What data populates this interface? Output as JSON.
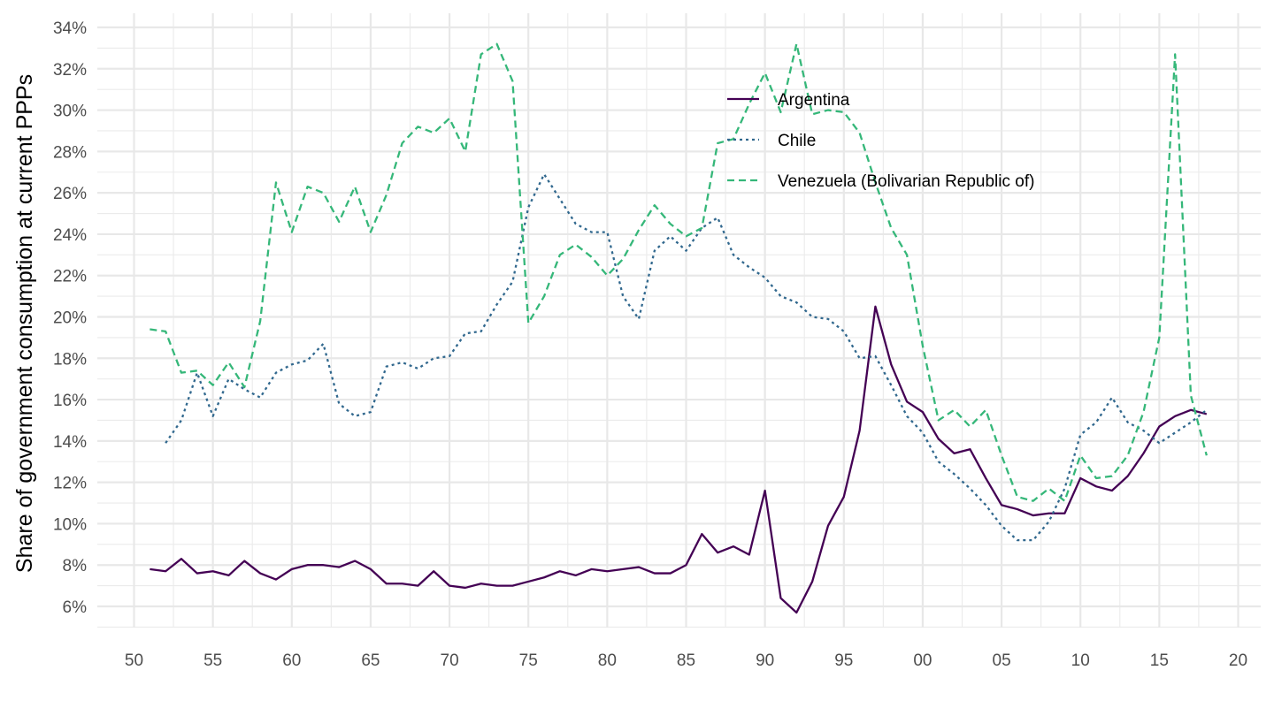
{
  "chart_data": {
    "type": "line",
    "title": "",
    "xlabel": "",
    "ylabel": "Share of government consumption at current PPPs",
    "xlim": [
      1948,
      2021
    ],
    "ylim": [
      0.05,
      0.345
    ],
    "x_ticks": [
      {
        "value": 1950,
        "label": "50"
      },
      {
        "value": 1955,
        "label": "55"
      },
      {
        "value": 1960,
        "label": "60"
      },
      {
        "value": 1965,
        "label": "65"
      },
      {
        "value": 1970,
        "label": "70"
      },
      {
        "value": 1975,
        "label": "75"
      },
      {
        "value": 1980,
        "label": "80"
      },
      {
        "value": 1985,
        "label": "85"
      },
      {
        "value": 1990,
        "label": "90"
      },
      {
        "value": 1995,
        "label": "95"
      },
      {
        "value": 2000,
        "label": "00"
      },
      {
        "value": 2005,
        "label": "05"
      },
      {
        "value": 2010,
        "label": "10"
      },
      {
        "value": 2015,
        "label": "15"
      },
      {
        "value": 2020,
        "label": "20"
      }
    ],
    "y_ticks": [
      {
        "value": 0.06,
        "label": "6%"
      },
      {
        "value": 0.08,
        "label": "8%"
      },
      {
        "value": 0.1,
        "label": "10%"
      },
      {
        "value": 0.12,
        "label": "12%"
      },
      {
        "value": 0.14,
        "label": "14%"
      },
      {
        "value": 0.16,
        "label": "16%"
      },
      {
        "value": 0.18,
        "label": "18%"
      },
      {
        "value": 0.2,
        "label": "20%"
      },
      {
        "value": 0.22,
        "label": "22%"
      },
      {
        "value": 0.24,
        "label": "24%"
      },
      {
        "value": 0.26,
        "label": "26%"
      },
      {
        "value": 0.28,
        "label": "28%"
      },
      {
        "value": 0.3,
        "label": "30%"
      },
      {
        "value": 0.32,
        "label": "32%"
      },
      {
        "value": 0.34,
        "label": "34%"
      }
    ],
    "grid": true,
    "legend": {
      "position": "top-right, inside plot"
    },
    "series": [
      {
        "name": "Argentina",
        "color": "#440154",
        "dash": "solid",
        "x": [
          1951,
          1952,
          1953,
          1954,
          1955,
          1956,
          1957,
          1958,
          1959,
          1960,
          1961,
          1962,
          1963,
          1964,
          1965,
          1966,
          1967,
          1968,
          1969,
          1970,
          1971,
          1972,
          1973,
          1974,
          1975,
          1976,
          1977,
          1978,
          1979,
          1980,
          1981,
          1982,
          1983,
          1984,
          1985,
          1986,
          1987,
          1988,
          1989,
          1990,
          1991,
          1992,
          1993,
          1994,
          1995,
          1996,
          1997,
          1998,
          1999,
          2000,
          2001,
          2002,
          2003,
          2004,
          2005,
          2006,
          2007,
          2008,
          2009,
          2010,
          2011,
          2012,
          2013,
          2014,
          2015,
          2016,
          2017,
          2018
        ],
        "y": [
          0.078,
          0.077,
          0.083,
          0.076,
          0.077,
          0.075,
          0.082,
          0.076,
          0.073,
          0.078,
          0.08,
          0.08,
          0.079,
          0.082,
          0.078,
          0.071,
          0.071,
          0.07,
          0.077,
          0.07,
          0.069,
          0.071,
          0.07,
          0.07,
          0.072,
          0.074,
          0.077,
          0.075,
          0.078,
          0.077,
          0.078,
          0.079,
          0.076,
          0.076,
          0.08,
          0.095,
          0.086,
          0.089,
          0.085,
          0.116,
          0.064,
          0.057,
          0.072,
          0.099,
          0.113,
          0.145,
          0.205,
          0.177,
          0.159,
          0.154,
          0.141,
          0.134,
          0.136,
          0.122,
          0.109,
          0.107,
          0.104,
          0.105,
          0.105,
          0.122,
          0.118,
          0.116,
          0.123,
          0.134,
          0.147,
          0.152,
          0.155,
          0.153
        ]
      },
      {
        "name": "Chile",
        "color": "#31688E",
        "dash": "dotted",
        "x": [
          1952,
          1953,
          1954,
          1955,
          1956,
          1957,
          1958,
          1959,
          1960,
          1961,
          1962,
          1963,
          1964,
          1965,
          1966,
          1967,
          1968,
          1969,
          1970,
          1971,
          1972,
          1973,
          1974,
          1975,
          1976,
          1977,
          1978,
          1979,
          1980,
          1981,
          1982,
          1983,
          1984,
          1985,
          1986,
          1987,
          1988,
          1989,
          1990,
          1991,
          1992,
          1993,
          1994,
          1995,
          1996,
          1997,
          1998,
          1999,
          2000,
          2001,
          2002,
          2003,
          2004,
          2005,
          2006,
          2007,
          2008,
          2009,
          2010,
          2011,
          2012,
          2013,
          2014,
          2015,
          2016,
          2017,
          2018
        ],
        "y": [
          0.139,
          0.15,
          0.173,
          0.152,
          0.17,
          0.165,
          0.161,
          0.173,
          0.177,
          0.179,
          0.187,
          0.158,
          0.152,
          0.154,
          0.176,
          0.178,
          0.175,
          0.18,
          0.181,
          0.192,
          0.193,
          0.206,
          0.217,
          0.253,
          0.269,
          0.257,
          0.245,
          0.241,
          0.241,
          0.21,
          0.199,
          0.232,
          0.239,
          0.232,
          0.243,
          0.248,
          0.23,
          0.224,
          0.219,
          0.21,
          0.207,
          0.2,
          0.199,
          0.193,
          0.18,
          0.181,
          0.167,
          0.152,
          0.144,
          0.13,
          0.124,
          0.117,
          0.109,
          0.099,
          0.092,
          0.092,
          0.101,
          0.117,
          0.143,
          0.149,
          0.161,
          0.149,
          0.145,
          0.139,
          0.144,
          0.149,
          0.155
        ]
      },
      {
        "name": "Venezuela (Bolivarian Republic of)",
        "color": "#35B779",
        "dash": "dashed",
        "x": [
          1951,
          1952,
          1953,
          1954,
          1955,
          1956,
          1957,
          1958,
          1959,
          1960,
          1961,
          1962,
          1963,
          1964,
          1965,
          1966,
          1967,
          1968,
          1969,
          1970,
          1971,
          1972,
          1973,
          1974,
          1975,
          1976,
          1977,
          1978,
          1979,
          1980,
          1981,
          1982,
          1983,
          1984,
          1985,
          1986,
          1987,
          1988,
          1989,
          1990,
          1991,
          1992,
          1993,
          1994,
          1995,
          1996,
          1997,
          1998,
          1999,
          2000,
          2001,
          2002,
          2003,
          2004,
          2005,
          2006,
          2007,
          2008,
          2009,
          2010,
          2011,
          2012,
          2013,
          2014,
          2015,
          2016,
          2017,
          2018
        ],
        "y": [
          0.194,
          0.193,
          0.173,
          0.174,
          0.167,
          0.178,
          0.166,
          0.198,
          0.265,
          0.241,
          0.263,
          0.26,
          0.246,
          0.263,
          0.241,
          0.259,
          0.284,
          0.292,
          0.289,
          0.296,
          0.28,
          0.327,
          0.332,
          0.314,
          0.197,
          0.21,
          0.23,
          0.235,
          0.229,
          0.22,
          0.228,
          0.242,
          0.254,
          0.245,
          0.239,
          0.243,
          0.284,
          0.286,
          0.303,
          0.318,
          0.299,
          0.332,
          0.298,
          0.3,
          0.299,
          0.289,
          0.265,
          0.243,
          0.23,
          0.186,
          0.15,
          0.155,
          0.147,
          0.155,
          0.133,
          0.113,
          0.111,
          0.117,
          0.111,
          0.133,
          0.122,
          0.123,
          0.133,
          0.154,
          0.19,
          0.327,
          0.162,
          0.133
        ]
      }
    ]
  }
}
